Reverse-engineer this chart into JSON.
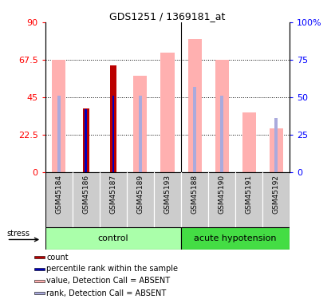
{
  "title": "GDS1251 / 1369181_at",
  "samples": [
    "GSM45184",
    "GSM45186",
    "GSM45187",
    "GSM45189",
    "GSM45193",
    "GSM45188",
    "GSM45190",
    "GSM45191",
    "GSM45192"
  ],
  "value_absent": [
    67.5,
    0,
    0,
    58,
    72,
    80,
    67.5,
    36,
    26
  ],
  "rank_absent_pct": [
    51,
    0,
    51,
    51,
    0,
    57,
    51,
    0,
    36
  ],
  "count_red": [
    0,
    38,
    64,
    0,
    0,
    0,
    0,
    0,
    0
  ],
  "rank_blue_pct": [
    0,
    42,
    51,
    0,
    0,
    0,
    0,
    0,
    0
  ],
  "ylim_left": [
    0,
    90
  ],
  "ylim_right": [
    0,
    100
  ],
  "yticks_left": [
    0,
    22.5,
    45,
    67.5,
    90
  ],
  "ytick_labels_left": [
    "0",
    "22.5",
    "45",
    "67.5",
    "90"
  ],
  "yticks_right": [
    0,
    25,
    50,
    75,
    100
  ],
  "ytick_labels_right": [
    "0",
    "25",
    "50",
    "75",
    "100%"
  ],
  "color_red": "#bb0000",
  "color_blue": "#0000bb",
  "color_pink": "#ffb0b0",
  "color_lavender": "#aaaadd",
  "color_green_light": "#aaffaa",
  "color_green_dark": "#44dd44",
  "color_gray": "#cccccc",
  "legend_items": [
    "count",
    "percentile rank within the sample",
    "value, Detection Call = ABSENT",
    "rank, Detection Call = ABSENT"
  ],
  "stress_label": "stress",
  "figsize": [
    4.2,
    3.75
  ],
  "dpi": 100
}
